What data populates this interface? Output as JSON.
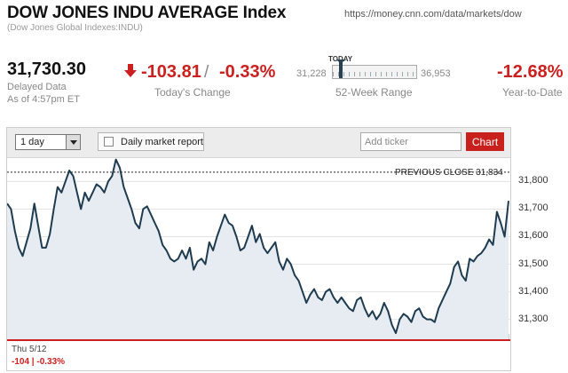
{
  "header": {
    "title": "DOW JONES INDU AVERAGE Index",
    "url": "https://money.cnn.com/data/markets/dow",
    "subtitle": "(Dow Jones Global Indexes:INDU)"
  },
  "quote": {
    "price": "31,730.30",
    "delayed": "Delayed Data",
    "as_of": "As of 4:57pm ET",
    "change_points": "-103.81",
    "separator": "/",
    "change_percent": "-0.33%",
    "change_label": "Today's Change",
    "range_today_label": "TODAY",
    "range_low": "31,228",
    "range_high": "36,953",
    "range_label": "52-Week Range",
    "range_today_fraction": 0.09,
    "ytd_percent": "-12.68%",
    "ytd_label": "Year-to-Date"
  },
  "toolbar": {
    "period_value": "1 day",
    "daily_report_label": "Daily market report",
    "ticker_placeholder": "Add ticker",
    "chart_button": "Chart"
  },
  "colors": {
    "down_red": "#cc1f1f",
    "line": "#1f3b50",
    "fill": "#e6ecf2",
    "button_red": "#c8211d"
  },
  "chart_data": {
    "type": "area",
    "previous_close_label": "PREVIOUS CLOSE 31,834",
    "previous_close": 31834,
    "y_ticks": [
      "31,800",
      "31,700",
      "31,600",
      "31,500",
      "31,400",
      "31,300"
    ],
    "y_tick_values": [
      31800,
      31700,
      31600,
      31500,
      31400,
      31300
    ],
    "ylim": [
      31215,
      31885
    ],
    "x_label": "Thu 5/12",
    "x_change": "-104 | -0.33%",
    "x_range": [
      0,
      140
    ],
    "values": [
      31720,
      31700,
      31620,
      31560,
      31530,
      31580,
      31630,
      31720,
      31640,
      31560,
      31560,
      31610,
      31700,
      31780,
      31760,
      31800,
      31840,
      31820,
      31760,
      31700,
      31760,
      31730,
      31760,
      31790,
      31780,
      31760,
      31800,
      31820,
      31880,
      31850,
      31780,
      31740,
      31700,
      31650,
      31630,
      31700,
      31710,
      31680,
      31650,
      31620,
      31570,
      31550,
      31520,
      31510,
      31520,
      31550,
      31520,
      31560,
      31480,
      31510,
      31520,
      31500,
      31580,
      31550,
      31600,
      31640,
      31680,
      31650,
      31640,
      31600,
      31550,
      31560,
      31600,
      31640,
      31580,
      31610,
      31560,
      31540,
      31560,
      31580,
      31510,
      31480,
      31520,
      31500,
      31460,
      31440,
      31400,
      31360,
      31390,
      31410,
      31380,
      31370,
      31400,
      31410,
      31380,
      31360,
      31380,
      31360,
      31340,
      31330,
      31370,
      31380,
      31340,
      31310,
      31330,
      31300,
      31320,
      31360,
      31330,
      31280,
      31250,
      31300,
      31320,
      31310,
      31290,
      31330,
      31340,
      31310,
      31300,
      31300,
      31290,
      31340,
      31370,
      31400,
      31430,
      31490,
      31510,
      31460,
      31440,
      31520,
      31510,
      31530,
      31540,
      31560,
      31590,
      31570,
      31690,
      31650,
      31600,
      31730
    ],
    "volume_heights": [
      6,
      3,
      2,
      5,
      2,
      2,
      3,
      2,
      2,
      2,
      2,
      2,
      3,
      2,
      3,
      2,
      2,
      2,
      2,
      3,
      2,
      2,
      2,
      2,
      2,
      2,
      3,
      2,
      2,
      2,
      2,
      3,
      2,
      2,
      2,
      2,
      2,
      2,
      2,
      2,
      2,
      2,
      2,
      2,
      2,
      2,
      2,
      3,
      2,
      2,
      2,
      2,
      2,
      2,
      2,
      2,
      2,
      2,
      2,
      2,
      2,
      2,
      2,
      2,
      2,
      2,
      2,
      2,
      2,
      2,
      2,
      2,
      2,
      2,
      2,
      2,
      3,
      2,
      2,
      2,
      2,
      2,
      2,
      3,
      2,
      2,
      2,
      2,
      2,
      2,
      2,
      2,
      2,
      2,
      3,
      2,
      2,
      2,
      2,
      2,
      2,
      2,
      2,
      2,
      2,
      2,
      2,
      2,
      2,
      2,
      3,
      2,
      3,
      2,
      2,
      2,
      2,
      2,
      2,
      2,
      2,
      2,
      2,
      2,
      3,
      2,
      2,
      2,
      3,
      5,
      6
    ]
  }
}
